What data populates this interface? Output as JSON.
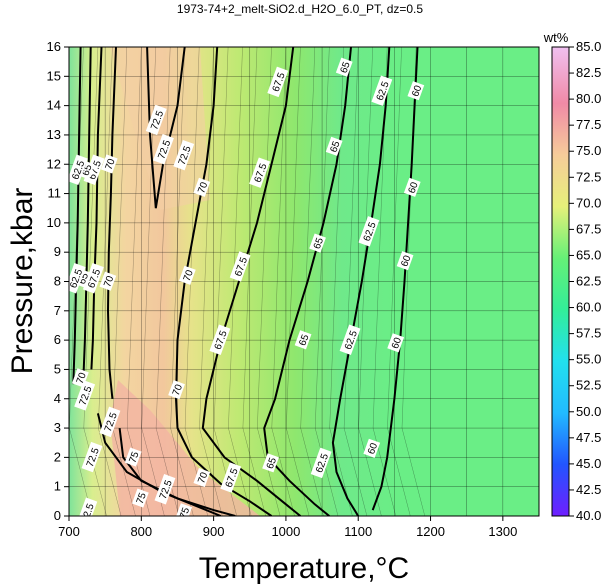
{
  "chart_data": {
    "type": "heatmap",
    "title": "1973-74+2_melt-SiO2.d_H2O_6.0_PT, dz=0.5",
    "xlabel": "Temperature,°C",
    "ylabel": "Pressure,kbar",
    "xlim": [
      700,
      1350
    ],
    "ylim": [
      0,
      16
    ],
    "x_ticks": [
      "700",
      "800",
      "900",
      "1000",
      "1100",
      "1200",
      "1300"
    ],
    "y_ticks": [
      "0",
      "1",
      "2",
      "3",
      "4",
      "5",
      "6",
      "7",
      "8",
      "9",
      "10",
      "11",
      "12",
      "13",
      "14",
      "15",
      "16"
    ],
    "grid": true,
    "colorbar": {
      "unit": "wt%",
      "min": 40,
      "max": 85,
      "ticks": [
        "40.0",
        "42.5",
        "45.0",
        "47.5",
        "50.0",
        "52.5",
        "55.0",
        "57.5",
        "60.0",
        "62.5",
        "65.0",
        "67.5",
        "70.0",
        "72.5",
        "75.0",
        "77.5",
        "80.0",
        "82.5",
        "85.0"
      ]
    },
    "contours": [
      {
        "level": "60",
        "points": [
          [
            1182,
            16
          ],
          [
            1178,
            14
          ],
          [
            1174,
            12
          ],
          [
            1169,
            10
          ],
          [
            1164,
            8
          ],
          [
            1158,
            6
          ],
          [
            1150,
            4
          ],
          [
            1140,
            2
          ],
          [
            1132,
            1
          ],
          [
            1120,
            0.2
          ]
        ]
      },
      {
        "level": "62.5",
        "points": [
          [
            1143,
            16
          ],
          [
            1138,
            14
          ],
          [
            1130,
            12
          ],
          [
            1118,
            10
          ],
          [
            1105,
            8
          ],
          [
            1090,
            6
          ],
          [
            1075,
            4
          ],
          [
            1065,
            2.5
          ],
          [
            1070,
            1.5
          ],
          [
            1085,
            0.6
          ],
          [
            1100,
            0
          ]
        ]
      },
      {
        "level": "65",
        "points": [
          [
            1090,
            16
          ],
          [
            1082,
            14
          ],
          [
            1070,
            12
          ],
          [
            1052,
            10
          ],
          [
            1030,
            8
          ],
          [
            1005,
            6
          ],
          [
            985,
            4
          ],
          [
            970,
            3
          ],
          [
            975,
            2
          ],
          [
            1005,
            1.2
          ],
          [
            1040,
            0.4
          ],
          [
            1060,
            0
          ]
        ]
      },
      {
        "level": "67.5",
        "points": [
          [
            1010,
            16
          ],
          [
            1000,
            14
          ],
          [
            980,
            12
          ],
          [
            960,
            10
          ],
          [
            935,
            8
          ],
          [
            910,
            6
          ],
          [
            890,
            4
          ],
          [
            885,
            3
          ],
          [
            915,
            2
          ],
          [
            960,
            1.2
          ],
          [
            1000,
            0.4
          ],
          [
            1020,
            0
          ]
        ]
      },
      {
        "level": "70",
        "points": [
          [
            905,
            16
          ],
          [
            900,
            14
          ],
          [
            890,
            12
          ],
          [
            875,
            10
          ],
          [
            860,
            8
          ],
          [
            850,
            6
          ],
          [
            848,
            4
          ],
          [
            850,
            3
          ],
          [
            870,
            2
          ],
          [
            910,
            1.1
          ],
          [
            950,
            0.5
          ],
          [
            980,
            0
          ]
        ]
      },
      {
        "level": "72.5",
        "points": [
          [
            808,
            16
          ],
          [
            812,
            13
          ],
          [
            820,
            10.5
          ],
          [
            830,
            12
          ],
          [
            850,
            14
          ],
          [
            860,
            16
          ]
        ]
      },
      {
        "level": "70",
        "points": [
          [
            765,
            16
          ],
          [
            760,
            13
          ],
          [
            758,
            11
          ],
          [
            755,
            9
          ],
          [
            754,
            7
          ],
          [
            756,
            5
          ],
          [
            760,
            4
          ]
        ]
      },
      {
        "level": "75",
        "points": [
          [
            770,
            3.0
          ],
          [
            775,
            2.0
          ],
          [
            800,
            1.2
          ],
          [
            850,
            0.6
          ],
          [
            900,
            0.2
          ],
          [
            930,
            0
          ]
        ]
      },
      {
        "level": "72.5",
        "points": [
          [
            740,
            3.5
          ],
          [
            750,
            2.5
          ],
          [
            780,
            1.5
          ],
          [
            830,
            0.8
          ],
          [
            880,
            0.3
          ],
          [
            910,
            0
          ]
        ]
      },
      {
        "level": "67.5",
        "points": [
          [
            745,
            16
          ],
          [
            740,
            13
          ],
          [
            738,
            10
          ],
          [
            735,
            8
          ],
          [
            733,
            6
          ],
          [
            731,
            5
          ]
        ]
      },
      {
        "level": "65",
        "points": [
          [
            730,
            16
          ],
          [
            728,
            13
          ],
          [
            726,
            10
          ],
          [
            724,
            8
          ],
          [
            722,
            6
          ],
          [
            720,
            4.8
          ]
        ]
      },
      {
        "level": "62.5",
        "points": [
          [
            716,
            16
          ],
          [
            714,
            13
          ],
          [
            712,
            10
          ],
          [
            710,
            8
          ],
          [
            708,
            6
          ],
          [
            706,
            4.5
          ]
        ]
      }
    ],
    "contour_labels": [
      {
        "text": "60",
        "x": 1120,
        "y": 2.3
      },
      {
        "text": "60",
        "x": 1153,
        "y": 5.9
      },
      {
        "text": "60",
        "x": 1166,
        "y": 8.7
      },
      {
        "text": "60",
        "x": 1176,
        "y": 11.2
      },
      {
        "text": "60",
        "x": 1181,
        "y": 14.5
      },
      {
        "text": "62.5",
        "x": 1050,
        "y": 1.8
      },
      {
        "text": "62.5",
        "x": 1090,
        "y": 6.0
      },
      {
        "text": "62.5",
        "x": 1116,
        "y": 9.7
      },
      {
        "text": "62.5",
        "x": 1134,
        "y": 14.5
      },
      {
        "text": "65",
        "x": 980,
        "y": 1.8
      },
      {
        "text": "65",
        "x": 1025,
        "y": 6.0
      },
      {
        "text": "65",
        "x": 1045,
        "y": 9.3
      },
      {
        "text": "65",
        "x": 1068,
        "y": 12.6
      },
      {
        "text": "65",
        "x": 1082,
        "y": 15.3
      },
      {
        "text": "67.5",
        "x": 925,
        "y": 1.3
      },
      {
        "text": "67.5",
        "x": 910,
        "y": 6.0
      },
      {
        "text": "67.5",
        "x": 938,
        "y": 8.5
      },
      {
        "text": "67.5",
        "x": 965,
        "y": 11.7
      },
      {
        "text": "67.5",
        "x": 990,
        "y": 14.8
      },
      {
        "text": "70",
        "x": 850,
        "y": 4.3
      },
      {
        "text": "70",
        "x": 865,
        "y": 8.2
      },
      {
        "text": "70",
        "x": 885,
        "y": 11.2
      },
      {
        "text": "70",
        "x": 885,
        "y": 1.3
      },
      {
        "text": "70",
        "x": 755,
        "y": 8.0
      },
      {
        "text": "70",
        "x": 757,
        "y": 12.0
      },
      {
        "text": "72.5",
        "x": 832,
        "y": 12.5
      },
      {
        "text": "72.5",
        "x": 860,
        "y": 12.3
      },
      {
        "text": "72.5",
        "x": 822,
        "y": 13.5
      },
      {
        "text": "72.5",
        "x": 834,
        "y": 0.9
      },
      {
        "text": "72.5",
        "x": 758,
        "y": 3.2
      },
      {
        "text": "72.5",
        "x": 733,
        "y": 2.0
      },
      {
        "text": "75",
        "x": 790,
        "y": 2.0
      },
      {
        "text": "75",
        "x": 800,
        "y": 0.6
      },
      {
        "text": "75",
        "x": 860,
        "y": 0.1
      },
      {
        "text": "67.5",
        "x": 735,
        "y": 8.1
      },
      {
        "text": "67.5",
        "x": 736,
        "y": 11.8
      },
      {
        "text": "65",
        "x": 720,
        "y": 8.1
      },
      {
        "text": "65",
        "x": 725,
        "y": 11.8
      },
      {
        "text": "62.5",
        "x": 710,
        "y": 8.1
      },
      {
        "text": "62.5",
        "x": 713,
        "y": 11.8
      },
      {
        "text": "72.5",
        "x": 723,
        "y": 4.1
      },
      {
        "text": "70",
        "x": 717,
        "y": 4.7
      },
      {
        "text": "72.5",
        "x": 726,
        "y": 0.1
      }
    ]
  }
}
